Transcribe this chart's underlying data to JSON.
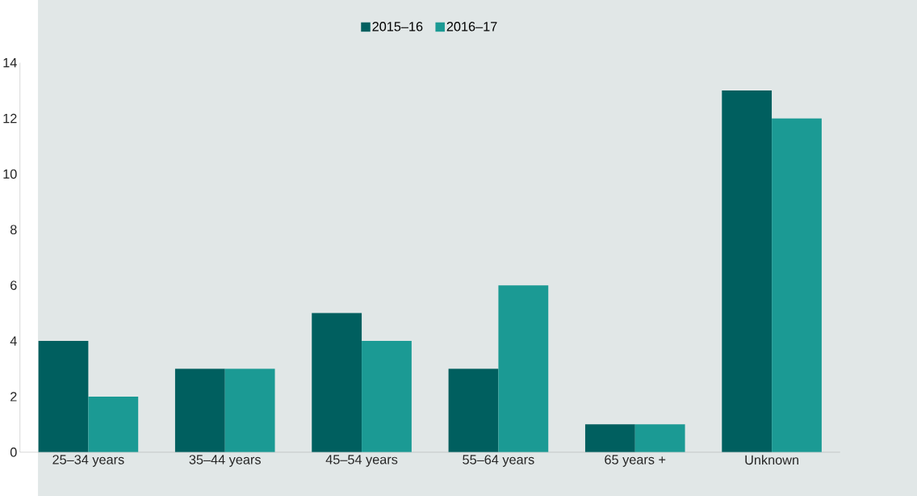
{
  "chart_data": {
    "type": "bar",
    "categories": [
      "25–34 years",
      "35–44 years",
      "45–54 years",
      "55–64 years",
      "65 years +",
      "Unknown"
    ],
    "series": [
      {
        "name": "2015–16",
        "color": "#005f5f",
        "values": [
          4,
          3,
          5,
          3,
          1,
          13
        ]
      },
      {
        "name": "2016–17",
        "color": "#1b9a94",
        "values": [
          2,
          3,
          4,
          6,
          1,
          12
        ]
      }
    ],
    "ylim": [
      0,
      14
    ],
    "yticks": [
      0,
      2,
      4,
      6,
      8,
      10,
      12,
      14
    ],
    "legend": "top"
  }
}
